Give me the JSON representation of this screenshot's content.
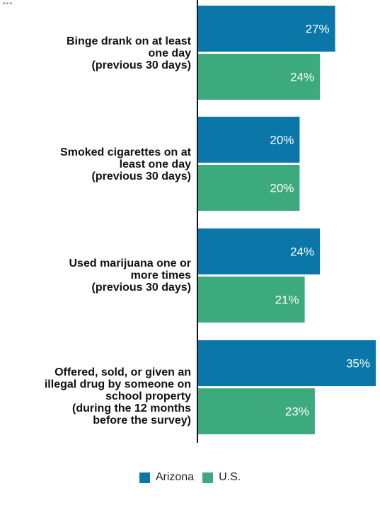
{
  "chart_data": {
    "type": "bar",
    "orientation": "horizontal",
    "categories": [
      "Binge drank on at least\none day\n(previous 30 days)",
      "Smoked cigarettes on at\nleast one day\n(previous 30 days)",
      "Used marijuana one or\nmore times\n(previous 30 days)",
      "Offered, sold, or given an\nillegal drug by someone on\nschool property\n(during the 12 months\nbefore the survey)"
    ],
    "series": [
      {
        "name": "Arizona",
        "values": [
          27,
          20,
          24,
          35
        ],
        "labels": [
          "27%",
          "20%",
          "24%",
          "35%"
        ]
      },
      {
        "name": "U.S.",
        "values": [
          24,
          20,
          21,
          23
        ],
        "labels": [
          "24%",
          "20%",
          "21%",
          "23%"
        ]
      }
    ],
    "xlim": [
      0,
      35
    ],
    "grid": false,
    "legend": "bottom-center",
    "colors": {
      "Arizona": "#0a77a8",
      "U.S.": "#3daa7e"
    }
  }
}
